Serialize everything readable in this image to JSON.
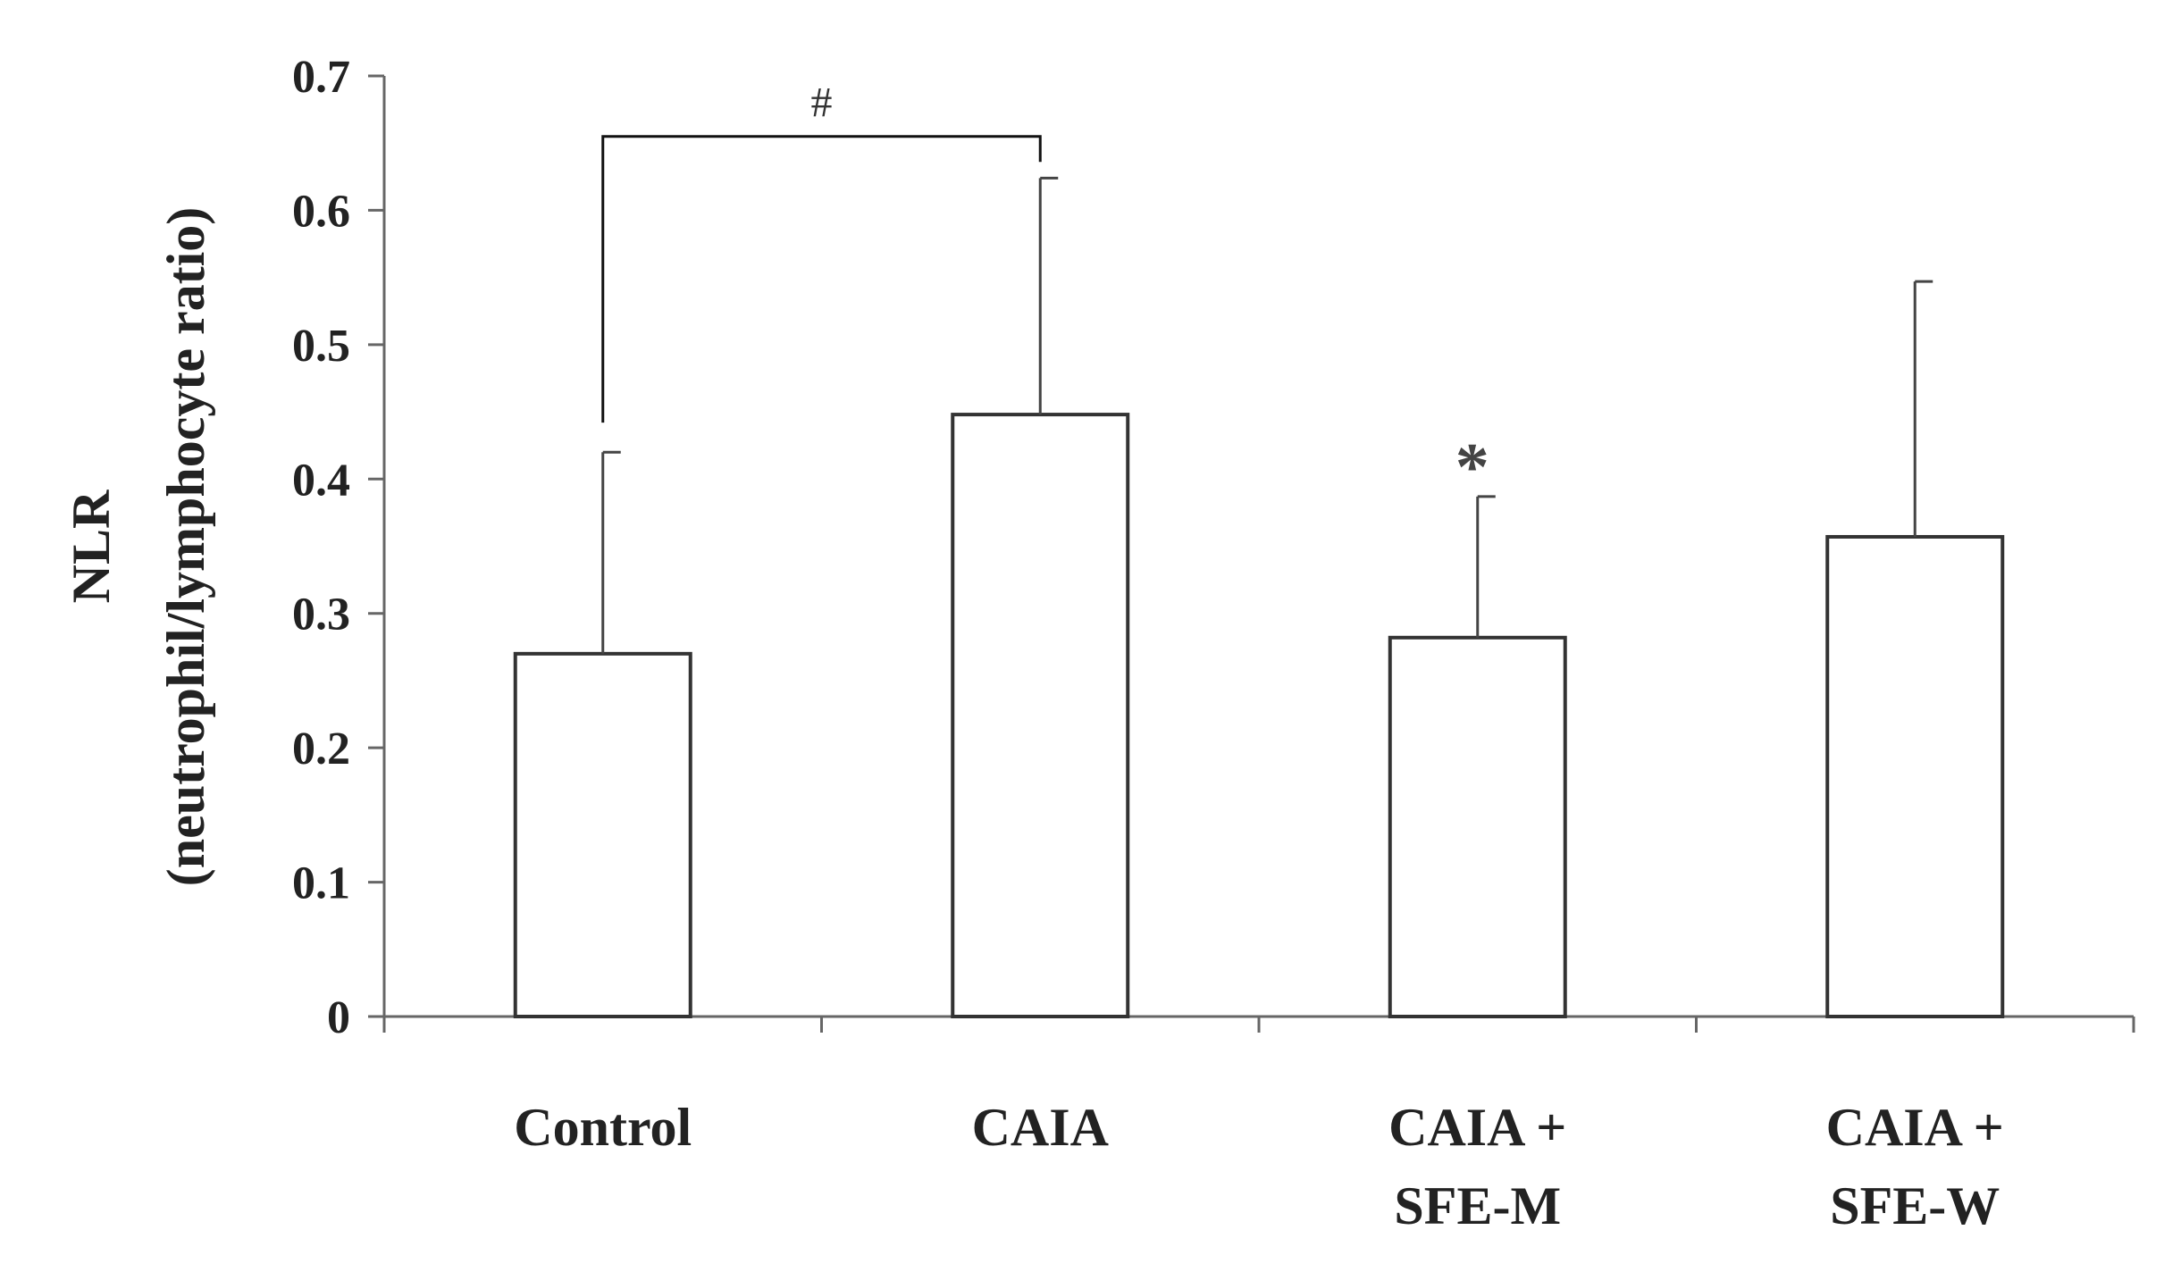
{
  "chart_data": {
    "type": "bar",
    "categories": [
      [
        "Control"
      ],
      [
        "CAIA"
      ],
      [
        "CAIA +",
        "SFE-M"
      ],
      [
        "CAIA +",
        "SFE-W"
      ]
    ],
    "values": [
      0.27,
      0.448,
      0.282,
      0.357
    ],
    "error_upper": [
      0.15,
      0.176,
      0.105,
      0.19
    ],
    "ylabel_line1": "NLR",
    "ylabel_line2": "(neutrophil/lymphocyte ratio)",
    "ylim": [
      0,
      0.7
    ],
    "yticks": [
      "0",
      "0.1",
      "0.2",
      "0.3",
      "0.4",
      "0.5",
      "0.6",
      "0.7"
    ],
    "grid": false,
    "legend": "none",
    "colors": {
      "bar_fill": "#ffffff",
      "bar_stroke": "#333333",
      "axis": "#666666",
      "error_bar": "#444444"
    },
    "annotations": {
      "bracket_symbol": "#",
      "bracket_between": [
        "Control",
        "CAIA"
      ],
      "star_symbol": "*",
      "star_category": "CAIA + SFE-M"
    }
  }
}
